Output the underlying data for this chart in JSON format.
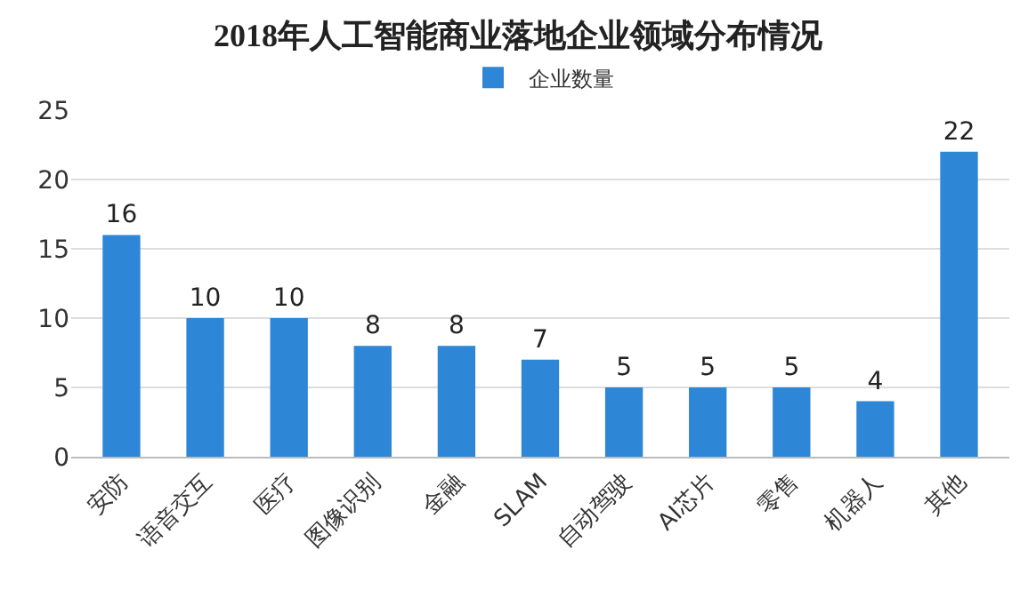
{
  "chart_data": {
    "type": "bar",
    "title": "2018年人工智能商业落地企业领域分布情况",
    "categories": [
      "安防",
      "语音交互",
      "医疗",
      "图像识别",
      "金融",
      "SLAM",
      "自动驾驶",
      "AI芯片",
      "零售",
      "机器人",
      "其他"
    ],
    "series": [
      {
        "name": "企业数量",
        "color": "#2e86d6",
        "values": [
          16,
          10,
          10,
          8,
          8,
          7,
          5,
          5,
          5,
          4,
          22
        ]
      }
    ],
    "ylim": [
      0,
      25
    ],
    "yticks": [
      0,
      5,
      10,
      15,
      20,
      25
    ],
    "grid": "y",
    "legend": "top",
    "data_labels": true
  }
}
